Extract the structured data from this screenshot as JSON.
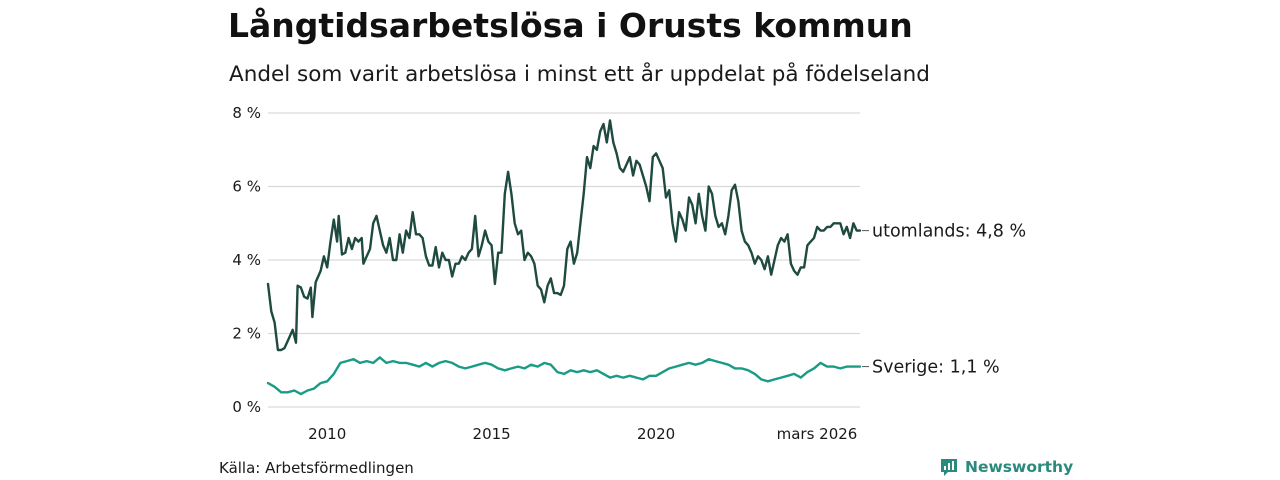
{
  "header": {
    "title": "Långtidsarbetslösa i Orusts kommun",
    "subtitle": "Andel som varit arbetslösa i minst ett år uppdelat på födelseland"
  },
  "footer": {
    "source": "Källa: Arbetsförmedlingen",
    "brand": "Newsworthy"
  },
  "colors": {
    "series_utomlands": "#1f4a40",
    "series_sverige": "#1a9b86",
    "grid": "#d9d9d9",
    "brand": "#2b8a7e"
  },
  "chart_data": {
    "type": "line",
    "title": "Långtidsarbetslösa i Orusts kommun",
    "subtitle": "Andel som varit arbetslösa i minst ett år uppdelat på födelseland",
    "xlabel": "",
    "ylabel": "",
    "x_range": [
      2008.2,
      2026.2
    ],
    "ylim": [
      0,
      8
    ],
    "y_ticks": [
      0,
      2,
      4,
      6,
      8
    ],
    "y_tick_labels": [
      "0 %",
      "2 %",
      "4 %",
      "6 %",
      "8 %"
    ],
    "x_ticks": [
      2010,
      2015,
      2020,
      2026.2
    ],
    "x_tick_labels": [
      "2010",
      "2015",
      "2020",
      "mars 2026"
    ],
    "grid": true,
    "series": [
      {
        "name": "utomlands",
        "end_label": "utomlands: 4,8 %",
        "points": [
          [
            2008.2,
            3.35
          ],
          [
            2008.3,
            2.6
          ],
          [
            2008.4,
            2.3
          ],
          [
            2008.5,
            1.55
          ],
          [
            2008.6,
            1.55
          ],
          [
            2008.7,
            1.6
          ],
          [
            2008.85,
            1.9
          ],
          [
            2008.95,
            2.1
          ],
          [
            2009.05,
            1.75
          ],
          [
            2009.1,
            3.3
          ],
          [
            2009.2,
            3.25
          ],
          [
            2009.3,
            3.0
          ],
          [
            2009.4,
            2.95
          ],
          [
            2009.5,
            3.25
          ],
          [
            2009.55,
            2.45
          ],
          [
            2009.65,
            3.4
          ],
          [
            2009.8,
            3.7
          ],
          [
            2009.9,
            4.1
          ],
          [
            2010.0,
            3.8
          ],
          [
            2010.1,
            4.5
          ],
          [
            2010.2,
            5.1
          ],
          [
            2010.3,
            4.5
          ],
          [
            2010.35,
            5.2
          ],
          [
            2010.45,
            4.15
          ],
          [
            2010.55,
            4.2
          ],
          [
            2010.65,
            4.6
          ],
          [
            2010.75,
            4.3
          ],
          [
            2010.85,
            4.6
          ],
          [
            2010.95,
            4.5
          ],
          [
            2011.05,
            4.6
          ],
          [
            2011.1,
            3.9
          ],
          [
            2011.2,
            4.1
          ],
          [
            2011.3,
            4.3
          ],
          [
            2011.4,
            5.0
          ],
          [
            2011.5,
            5.2
          ],
          [
            2011.6,
            4.8
          ],
          [
            2011.7,
            4.4
          ],
          [
            2011.8,
            4.2
          ],
          [
            2011.9,
            4.6
          ],
          [
            2012.0,
            4.0
          ],
          [
            2012.1,
            4.0
          ],
          [
            2012.2,
            4.7
          ],
          [
            2012.3,
            4.2
          ],
          [
            2012.4,
            4.8
          ],
          [
            2012.5,
            4.6
          ],
          [
            2012.6,
            5.3
          ],
          [
            2012.7,
            4.7
          ],
          [
            2012.8,
            4.7
          ],
          [
            2012.9,
            4.6
          ],
          [
            2013.0,
            4.1
          ],
          [
            2013.1,
            3.85
          ],
          [
            2013.2,
            3.85
          ],
          [
            2013.3,
            4.35
          ],
          [
            2013.4,
            3.8
          ],
          [
            2013.5,
            4.2
          ],
          [
            2013.6,
            4.0
          ],
          [
            2013.7,
            4.0
          ],
          [
            2013.8,
            3.55
          ],
          [
            2013.9,
            3.9
          ],
          [
            2014.0,
            3.9
          ],
          [
            2014.1,
            4.1
          ],
          [
            2014.2,
            4.0
          ],
          [
            2014.3,
            4.2
          ],
          [
            2014.4,
            4.3
          ],
          [
            2014.5,
            5.2
          ],
          [
            2014.6,
            4.1
          ],
          [
            2014.7,
            4.4
          ],
          [
            2014.8,
            4.8
          ],
          [
            2014.9,
            4.5
          ],
          [
            2015.0,
            4.4
          ],
          [
            2015.1,
            3.35
          ],
          [
            2015.2,
            4.2
          ],
          [
            2015.3,
            4.2
          ],
          [
            2015.4,
            5.8
          ],
          [
            2015.5,
            6.4
          ],
          [
            2015.6,
            5.8
          ],
          [
            2015.7,
            5.0
          ],
          [
            2015.8,
            4.7
          ],
          [
            2015.9,
            4.8
          ],
          [
            2016.0,
            4.0
          ],
          [
            2016.1,
            4.2
          ],
          [
            2016.2,
            4.1
          ],
          [
            2016.3,
            3.9
          ],
          [
            2016.4,
            3.3
          ],
          [
            2016.5,
            3.2
          ],
          [
            2016.6,
            2.85
          ],
          [
            2016.7,
            3.3
          ],
          [
            2016.8,
            3.5
          ],
          [
            2016.9,
            3.1
          ],
          [
            2017.0,
            3.1
          ],
          [
            2017.1,
            3.05
          ],
          [
            2017.2,
            3.3
          ],
          [
            2017.3,
            4.3
          ],
          [
            2017.4,
            4.5
          ],
          [
            2017.5,
            3.9
          ],
          [
            2017.6,
            4.2
          ],
          [
            2017.7,
            5.0
          ],
          [
            2017.8,
            5.8
          ],
          [
            2017.9,
            6.8
          ],
          [
            2018.0,
            6.5
          ],
          [
            2018.1,
            7.1
          ],
          [
            2018.2,
            7.0
          ],
          [
            2018.3,
            7.5
          ],
          [
            2018.4,
            7.7
          ],
          [
            2018.5,
            7.2
          ],
          [
            2018.6,
            7.8
          ],
          [
            2018.7,
            7.2
          ],
          [
            2018.8,
            6.9
          ],
          [
            2018.9,
            6.5
          ],
          [
            2019.0,
            6.4
          ],
          [
            2019.1,
            6.6
          ],
          [
            2019.2,
            6.8
          ],
          [
            2019.3,
            6.3
          ],
          [
            2019.4,
            6.7
          ],
          [
            2019.5,
            6.6
          ],
          [
            2019.6,
            6.3
          ],
          [
            2019.7,
            6.0
          ],
          [
            2019.8,
            5.6
          ],
          [
            2019.9,
            6.8
          ],
          [
            2020.0,
            6.9
          ],
          [
            2020.1,
            6.7
          ],
          [
            2020.2,
            6.5
          ],
          [
            2020.3,
            5.7
          ],
          [
            2020.4,
            5.9
          ],
          [
            2020.5,
            5.0
          ],
          [
            2020.6,
            4.5
          ],
          [
            2020.7,
            5.3
          ],
          [
            2020.8,
            5.1
          ],
          [
            2020.9,
            4.8
          ],
          [
            2021.0,
            5.7
          ],
          [
            2021.1,
            5.5
          ],
          [
            2021.2,
            5.0
          ],
          [
            2021.3,
            5.8
          ],
          [
            2021.4,
            5.2
          ],
          [
            2021.5,
            4.8
          ],
          [
            2021.6,
            6.0
          ],
          [
            2021.7,
            5.8
          ],
          [
            2021.8,
            5.2
          ],
          [
            2021.9,
            4.9
          ],
          [
            2022.0,
            5.0
          ],
          [
            2022.1,
            4.7
          ],
          [
            2022.2,
            5.2
          ],
          [
            2022.3,
            5.9
          ],
          [
            2022.4,
            6.05
          ],
          [
            2022.5,
            5.6
          ],
          [
            2022.6,
            4.8
          ],
          [
            2022.7,
            4.5
          ],
          [
            2022.8,
            4.4
          ],
          [
            2022.9,
            4.2
          ],
          [
            2023.0,
            3.9
          ],
          [
            2023.1,
            4.1
          ],
          [
            2023.2,
            4.0
          ],
          [
            2023.3,
            3.75
          ],
          [
            2023.4,
            4.1
          ],
          [
            2023.5,
            3.6
          ],
          [
            2023.6,
            4.0
          ],
          [
            2023.7,
            4.4
          ],
          [
            2023.8,
            4.6
          ],
          [
            2023.9,
            4.5
          ],
          [
            2024.0,
            4.7
          ],
          [
            2024.1,
            3.9
          ],
          [
            2024.2,
            3.7
          ],
          [
            2024.3,
            3.6
          ],
          [
            2024.4,
            3.8
          ],
          [
            2024.5,
            3.8
          ],
          [
            2024.6,
            4.4
          ],
          [
            2024.7,
            4.5
          ],
          [
            2024.8,
            4.6
          ],
          [
            2024.9,
            4.9
          ],
          [
            2025.0,
            4.8
          ],
          [
            2025.1,
            4.8
          ],
          [
            2025.2,
            4.9
          ],
          [
            2025.3,
            4.9
          ],
          [
            2025.4,
            5.0
          ],
          [
            2025.5,
            5.0
          ],
          [
            2025.6,
            5.0
          ],
          [
            2025.7,
            4.7
          ],
          [
            2025.8,
            4.9
          ],
          [
            2025.9,
            4.6
          ],
          [
            2026.0,
            5.0
          ],
          [
            2026.1,
            4.8
          ],
          [
            2026.2,
            4.8
          ]
        ]
      },
      {
        "name": "Sverige",
        "end_label": "Sverige: 1,1 %",
        "points": [
          [
            2008.2,
            0.65
          ],
          [
            2008.4,
            0.55
          ],
          [
            2008.6,
            0.4
          ],
          [
            2008.8,
            0.4
          ],
          [
            2009.0,
            0.45
          ],
          [
            2009.2,
            0.35
          ],
          [
            2009.4,
            0.45
          ],
          [
            2009.6,
            0.5
          ],
          [
            2009.8,
            0.65
          ],
          [
            2010.0,
            0.7
          ],
          [
            2010.2,
            0.9
          ],
          [
            2010.4,
            1.2
          ],
          [
            2010.6,
            1.25
          ],
          [
            2010.8,
            1.3
          ],
          [
            2011.0,
            1.2
          ],
          [
            2011.2,
            1.25
          ],
          [
            2011.4,
            1.2
          ],
          [
            2011.6,
            1.35
          ],
          [
            2011.8,
            1.2
          ],
          [
            2012.0,
            1.25
          ],
          [
            2012.2,
            1.2
          ],
          [
            2012.4,
            1.2
          ],
          [
            2012.6,
            1.15
          ],
          [
            2012.8,
            1.1
          ],
          [
            2013.0,
            1.2
          ],
          [
            2013.2,
            1.1
          ],
          [
            2013.4,
            1.2
          ],
          [
            2013.6,
            1.25
          ],
          [
            2013.8,
            1.2
          ],
          [
            2014.0,
            1.1
          ],
          [
            2014.2,
            1.05
          ],
          [
            2014.4,
            1.1
          ],
          [
            2014.6,
            1.15
          ],
          [
            2014.8,
            1.2
          ],
          [
            2015.0,
            1.15
          ],
          [
            2015.2,
            1.05
          ],
          [
            2015.4,
            1.0
          ],
          [
            2015.6,
            1.05
          ],
          [
            2015.8,
            1.1
          ],
          [
            2016.0,
            1.05
          ],
          [
            2016.2,
            1.15
          ],
          [
            2016.4,
            1.1
          ],
          [
            2016.6,
            1.2
          ],
          [
            2016.8,
            1.15
          ],
          [
            2017.0,
            0.95
          ],
          [
            2017.2,
            0.9
          ],
          [
            2017.4,
            1.0
          ],
          [
            2017.6,
            0.95
          ],
          [
            2017.8,
            1.0
          ],
          [
            2018.0,
            0.95
          ],
          [
            2018.2,
            1.0
          ],
          [
            2018.4,
            0.9
          ],
          [
            2018.6,
            0.8
          ],
          [
            2018.8,
            0.85
          ],
          [
            2019.0,
            0.8
          ],
          [
            2019.2,
            0.85
          ],
          [
            2019.4,
            0.8
          ],
          [
            2019.6,
            0.75
          ],
          [
            2019.8,
            0.85
          ],
          [
            2020.0,
            0.85
          ],
          [
            2020.2,
            0.95
          ],
          [
            2020.4,
            1.05
          ],
          [
            2020.6,
            1.1
          ],
          [
            2020.8,
            1.15
          ],
          [
            2021.0,
            1.2
          ],
          [
            2021.2,
            1.15
          ],
          [
            2021.4,
            1.2
          ],
          [
            2021.6,
            1.3
          ],
          [
            2021.8,
            1.25
          ],
          [
            2022.0,
            1.2
          ],
          [
            2022.2,
            1.15
          ],
          [
            2022.4,
            1.05
          ],
          [
            2022.6,
            1.05
          ],
          [
            2022.8,
            1.0
          ],
          [
            2023.0,
            0.9
          ],
          [
            2023.2,
            0.75
          ],
          [
            2023.4,
            0.7
          ],
          [
            2023.6,
            0.75
          ],
          [
            2023.8,
            0.8
          ],
          [
            2024.0,
            0.85
          ],
          [
            2024.2,
            0.9
          ],
          [
            2024.4,
            0.8
          ],
          [
            2024.6,
            0.95
          ],
          [
            2024.8,
            1.05
          ],
          [
            2025.0,
            1.2
          ],
          [
            2025.2,
            1.1
          ],
          [
            2025.4,
            1.1
          ],
          [
            2025.6,
            1.05
          ],
          [
            2025.8,
            1.1
          ],
          [
            2026.0,
            1.1
          ],
          [
            2026.2,
            1.1
          ]
        ]
      }
    ]
  }
}
